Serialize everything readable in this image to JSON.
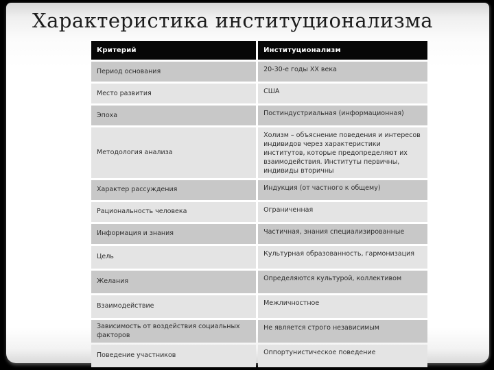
{
  "title": "Характеристика институционализма",
  "table": {
    "headers": [
      "Критерий",
      "Институционализм"
    ],
    "rows": [
      {
        "criterion": "Период основания",
        "value": "20-30-е годы XX века"
      },
      {
        "criterion": "Место развития",
        "value": "США"
      },
      {
        "criterion": "Эпоха",
        "value": "Постиндустриальная (информационная)"
      },
      {
        "criterion": "Методология анализа",
        "value": "Холизм – объяснение поведения и интересов индивидов через характеристики институтов, которые предопределяют их взаимодействия. Институты первичны, индивиды вторичны"
      },
      {
        "criterion": "Характер рассуждения",
        "value": "Индукция (от частного к общему)"
      },
      {
        "criterion": "Рациональность человека",
        "value": "Ограниченная"
      },
      {
        "criterion": "Информация и знания",
        "value": "Частичная, знания специализированные"
      },
      {
        "criterion": "Цель",
        "value": "Культурная образованность, гармонизация"
      },
      {
        "criterion": "Желания",
        "value": "Определяются культурой, коллективом"
      },
      {
        "criterion": "Взаимодействие",
        "value": "Межличностное"
      },
      {
        "criterion": "Зависимость от воздействия социальных факторов",
        "value": "Не является строго независимым"
      },
      {
        "criterion": "Поведение участников",
        "value": "Оппортунистическое поведение"
      }
    ]
  },
  "colors": {
    "header_bg": "#070707",
    "row_dark": "#c8c8c8",
    "row_light": "#e4e4e4",
    "frame": "#000000"
  }
}
